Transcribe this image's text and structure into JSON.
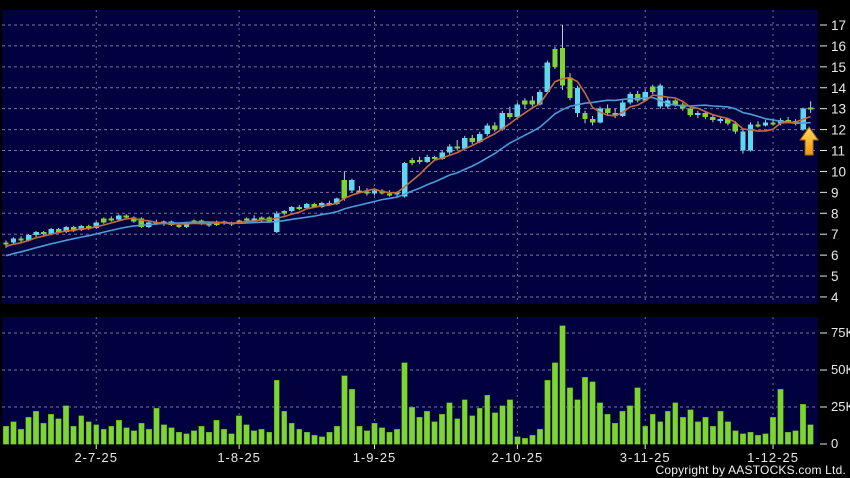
{
  "footer": {
    "copyright": "Copyright by AASTOCKS.com Ltd."
  },
  "chart_data": {
    "type": "candlestick",
    "panels": [
      "price",
      "volume"
    ],
    "price_axis": {
      "min": 4,
      "max": 17,
      "tick_labels": [
        "17",
        "16",
        "15",
        "14",
        "13",
        "12",
        "11",
        "10",
        "9",
        "8",
        "7",
        "6",
        "5",
        "4"
      ],
      "grid": "dashed"
    },
    "volume_axis": {
      "tick_labels": [
        "75K",
        "50K",
        "25K",
        "0"
      ],
      "tick_values_k": [
        75,
        50,
        25,
        0
      ],
      "grid": "dashed"
    },
    "x_axis": {
      "tick_labels": [
        "2-7-25",
        "1-8-25",
        "1-9-25",
        "2-10-25",
        "3-11-25",
        "1-12-25"
      ],
      "tick_indices": [
        12,
        31,
        49,
        68,
        85,
        102
      ]
    },
    "colors": {
      "plot_bg": "#01013F",
      "outer_bg": "#000000",
      "grid": "#8C8CA8",
      "candle_up_cyan": "#5FD8EF",
      "candle_green": "#7FD435",
      "wick": "#C9CDD6",
      "volume_bar": "#7FD435",
      "ma_fast": "#C76B3D",
      "ma_slow": "#4E9BD8",
      "arrow": "#F5B32A",
      "arrow_outline": "#A06A00",
      "axis_text": "#E8E8E8"
    },
    "ma_fast_period": 5,
    "ma_slow_period": 15,
    "pre_closes": [
      5.2,
      5.3,
      5.4,
      5.5,
      5.6,
      5.7,
      5.8,
      5.9,
      6.0,
      6.1,
      6.2,
      6.3,
      6.35,
      6.4,
      6.45
    ],
    "annotations": {
      "up_arrow": {
        "candle_index": 106,
        "near_price": 12.0
      }
    },
    "candles_format": [
      "open",
      "high",
      "low",
      "close",
      "color g=green b=cyan",
      "volume_k"
    ],
    "candles": [
      [
        6.5,
        6.7,
        6.35,
        6.6,
        "g",
        12
      ],
      [
        6.6,
        6.85,
        6.55,
        6.8,
        "b",
        15
      ],
      [
        6.8,
        6.9,
        6.6,
        6.7,
        "g",
        10
      ],
      [
        6.7,
        7.0,
        6.65,
        6.95,
        "b",
        18
      ],
      [
        6.95,
        7.15,
        6.85,
        7.1,
        "b",
        22
      ],
      [
        7.1,
        7.15,
        6.9,
        7.0,
        "g",
        14
      ],
      [
        7.0,
        7.3,
        6.95,
        7.25,
        "b",
        20
      ],
      [
        7.25,
        7.3,
        7.05,
        7.1,
        "g",
        17
      ],
      [
        7.1,
        7.4,
        7.05,
        7.35,
        "b",
        26
      ],
      [
        7.35,
        7.4,
        7.1,
        7.2,
        "g",
        12
      ],
      [
        7.2,
        7.45,
        7.15,
        7.4,
        "b",
        19
      ],
      [
        7.4,
        7.45,
        7.2,
        7.3,
        "g",
        15
      ],
      [
        7.3,
        7.6,
        7.25,
        7.55,
        "b",
        13
      ],
      [
        7.55,
        7.8,
        7.5,
        7.75,
        "g",
        10
      ],
      [
        7.75,
        7.85,
        7.6,
        7.7,
        "g",
        12
      ],
      [
        7.7,
        7.95,
        7.65,
        7.9,
        "b",
        16
      ],
      [
        7.9,
        7.95,
        7.7,
        7.8,
        "g",
        11
      ],
      [
        7.8,
        7.85,
        7.55,
        7.6,
        "g",
        9
      ],
      [
        7.75,
        7.8,
        7.3,
        7.35,
        "g",
        14
      ],
      [
        7.35,
        7.6,
        7.3,
        7.55,
        "b",
        10
      ],
      [
        7.55,
        7.7,
        7.45,
        7.5,
        "g",
        24
      ],
      [
        7.5,
        7.65,
        7.4,
        7.6,
        "b",
        13
      ],
      [
        7.6,
        7.65,
        7.4,
        7.45,
        "g",
        11
      ],
      [
        7.45,
        7.55,
        7.3,
        7.35,
        "g",
        8
      ],
      [
        7.35,
        7.6,
        7.3,
        7.55,
        "b",
        7
      ],
      [
        7.55,
        7.7,
        7.5,
        7.65,
        "g",
        9
      ],
      [
        7.65,
        7.7,
        7.45,
        7.5,
        "g",
        12
      ],
      [
        7.5,
        7.6,
        7.35,
        7.45,
        "b",
        8
      ],
      [
        7.45,
        7.65,
        7.4,
        7.6,
        "g",
        16
      ],
      [
        7.6,
        7.65,
        7.45,
        7.5,
        "b",
        10
      ],
      [
        7.5,
        7.6,
        7.4,
        7.55,
        "g",
        7
      ],
      [
        7.55,
        7.7,
        7.5,
        7.65,
        "g",
        19
      ],
      [
        7.65,
        7.8,
        7.55,
        7.75,
        "g",
        13
      ],
      [
        7.75,
        7.9,
        7.6,
        7.7,
        "b",
        9
      ],
      [
        7.7,
        7.85,
        7.6,
        7.8,
        "g",
        10
      ],
      [
        7.8,
        7.85,
        7.55,
        7.6,
        "g",
        8
      ],
      [
        7.1,
        8.1,
        7.05,
        8.0,
        "b",
        43
      ],
      [
        8.0,
        8.15,
        7.9,
        8.1,
        "g",
        22
      ],
      [
        8.1,
        8.35,
        8.05,
        8.3,
        "b",
        14
      ],
      [
        8.3,
        8.4,
        8.15,
        8.25,
        "g",
        10
      ],
      [
        8.25,
        8.5,
        8.2,
        8.45,
        "b",
        8
      ],
      [
        8.45,
        8.5,
        8.25,
        8.3,
        "g",
        6
      ],
      [
        8.3,
        8.55,
        8.25,
        8.5,
        "b",
        5
      ],
      [
        8.5,
        8.6,
        8.35,
        8.45,
        "g",
        8
      ],
      [
        8.45,
        8.75,
        8.4,
        8.7,
        "b",
        12
      ],
      [
        8.7,
        10.0,
        8.6,
        9.6,
        "g",
        46
      ],
      [
        9.6,
        9.65,
        9.0,
        9.1,
        "b",
        37
      ],
      [
        9.1,
        9.3,
        8.95,
        9.05,
        "g",
        12
      ],
      [
        9.05,
        9.2,
        8.85,
        8.95,
        "g",
        9
      ],
      [
        8.95,
        9.15,
        8.85,
        9.1,
        "b",
        14
      ],
      [
        9.1,
        9.15,
        8.9,
        8.95,
        "g",
        11
      ],
      [
        8.95,
        9.1,
        8.8,
        8.9,
        "g",
        8
      ],
      [
        8.9,
        9.05,
        8.8,
        9.0,
        "b",
        10
      ],
      [
        8.8,
        10.45,
        8.75,
        10.4,
        "b",
        55
      ],
      [
        10.4,
        10.65,
        10.3,
        10.55,
        "g",
        25
      ],
      [
        10.55,
        10.7,
        10.35,
        10.45,
        "g",
        18
      ],
      [
        10.45,
        10.8,
        10.4,
        10.7,
        "b",
        22
      ],
      [
        10.7,
        10.75,
        10.5,
        10.6,
        "g",
        15
      ],
      [
        10.6,
        11.0,
        10.55,
        10.9,
        "b",
        20
      ],
      [
        10.9,
        11.3,
        10.8,
        11.2,
        "b",
        28
      ],
      [
        11.2,
        11.5,
        11.0,
        11.1,
        "g",
        17
      ],
      [
        11.1,
        11.7,
        11.05,
        11.6,
        "b",
        30
      ],
      [
        11.6,
        11.75,
        11.3,
        11.4,
        "g",
        19
      ],
      [
        11.4,
        11.9,
        11.35,
        11.8,
        "b",
        24
      ],
      [
        11.8,
        12.3,
        11.7,
        12.2,
        "b",
        33
      ],
      [
        12.2,
        12.35,
        11.9,
        12.0,
        "g",
        21
      ],
      [
        12.0,
        12.9,
        11.95,
        12.8,
        "b",
        26
      ],
      [
        12.8,
        13.1,
        12.5,
        12.6,
        "g",
        30
      ],
      [
        12.6,
        13.3,
        12.55,
        13.2,
        "b",
        5
      ],
      [
        13.2,
        13.5,
        13.0,
        13.4,
        "g",
        4
      ],
      [
        13.4,
        13.6,
        13.1,
        13.2,
        "g",
        6
      ],
      [
        13.2,
        13.9,
        13.15,
        13.8,
        "b",
        10
      ],
      [
        13.8,
        15.3,
        13.7,
        15.2,
        "b",
        43
      ],
      [
        15.0,
        15.95,
        14.9,
        15.85,
        "g",
        55
      ],
      [
        15.9,
        17.0,
        13.9,
        14.1,
        "g",
        80
      ],
      [
        14.5,
        14.7,
        13.4,
        13.5,
        "g",
        38
      ],
      [
        14.0,
        14.1,
        12.6,
        12.8,
        "b",
        30
      ],
      [
        12.8,
        12.9,
        12.3,
        12.5,
        "g",
        45
      ],
      [
        12.5,
        12.65,
        12.2,
        12.35,
        "g",
        42
      ],
      [
        12.35,
        13.1,
        12.3,
        13.0,
        "b",
        28
      ],
      [
        13.0,
        13.2,
        12.7,
        12.8,
        "g",
        20
      ],
      [
        12.8,
        13.0,
        12.55,
        12.65,
        "g",
        14
      ],
      [
        12.65,
        13.4,
        12.6,
        13.3,
        "b",
        22
      ],
      [
        13.3,
        13.8,
        13.2,
        13.7,
        "b",
        26
      ],
      [
        13.7,
        13.85,
        13.3,
        13.4,
        "g",
        38
      ],
      [
        13.4,
        13.9,
        13.35,
        13.8,
        "b",
        12
      ],
      [
        13.8,
        14.15,
        13.7,
        14.05,
        "g",
        20
      ],
      [
        14.1,
        14.2,
        13.0,
        13.1,
        "b",
        15
      ],
      [
        13.1,
        13.5,
        13.0,
        13.4,
        "b",
        22
      ],
      [
        13.4,
        13.45,
        13.1,
        13.2,
        "g",
        28
      ],
      [
        13.2,
        13.3,
        12.9,
        13.0,
        "g",
        18
      ],
      [
        13.0,
        13.05,
        12.6,
        12.7,
        "g",
        23
      ],
      [
        12.7,
        12.9,
        12.55,
        12.8,
        "b",
        15
      ],
      [
        12.8,
        12.85,
        12.5,
        12.6,
        "g",
        18
      ],
      [
        12.6,
        12.7,
        12.35,
        12.45,
        "g",
        12
      ],
      [
        12.45,
        12.6,
        12.3,
        12.5,
        "b",
        22
      ],
      [
        12.5,
        12.55,
        12.2,
        12.3,
        "g",
        15
      ],
      [
        12.3,
        12.4,
        11.8,
        11.9,
        "g",
        9
      ],
      [
        11.9,
        12.0,
        10.85,
        11.0,
        "b",
        7
      ],
      [
        11.0,
        12.35,
        10.95,
        12.25,
        "b",
        8
      ],
      [
        12.25,
        12.4,
        12.1,
        12.2,
        "g",
        6
      ],
      [
        12.2,
        12.45,
        12.15,
        12.35,
        "b",
        7
      ],
      [
        12.35,
        12.5,
        12.2,
        12.3,
        "g",
        18
      ],
      [
        12.3,
        12.55,
        12.2,
        12.45,
        "b",
        37
      ],
      [
        12.45,
        12.6,
        12.3,
        12.4,
        "g",
        8
      ],
      [
        12.4,
        12.5,
        12.2,
        12.3,
        "g",
        9
      ],
      [
        12.0,
        13.05,
        11.95,
        13.0,
        "b",
        27
      ],
      [
        13.05,
        13.35,
        12.8,
        12.95,
        "g",
        13
      ]
    ]
  }
}
